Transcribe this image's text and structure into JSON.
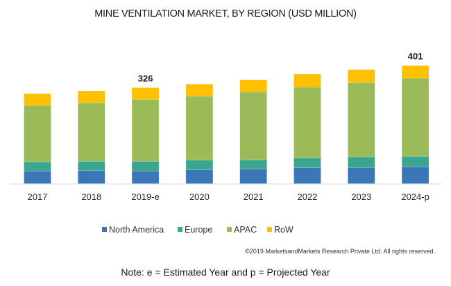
{
  "chart_data": {
    "type": "bar",
    "stacked": true,
    "title": "MINE VENTILATION MARKET, BY REGION (USD MILLION)",
    "xlabel": "",
    "ylabel": "",
    "categories": [
      "2017",
      "2018",
      "2019-e",
      "2020",
      "2021",
      "2022",
      "2023",
      "2024-p"
    ],
    "series": [
      {
        "name": "North America",
        "color": "#3A76B8",
        "values": [
          43,
          45,
          43,
          47,
          49,
          54,
          55,
          57
        ]
      },
      {
        "name": "Europe",
        "color": "#3AA68E",
        "values": [
          31,
          31,
          33,
          33,
          32,
          33,
          36,
          36
        ]
      },
      {
        "name": "APAC",
        "color": "#9BBB59",
        "values": [
          192,
          199,
          210,
          218,
          231,
          241,
          253,
          265
        ]
      },
      {
        "name": "RoW",
        "color": "#FFC000",
        "values": [
          40,
          40,
          40,
          40,
          41,
          44,
          43,
          43
        ]
      }
    ],
    "totals": [
      306,
      315,
      326,
      338,
      353,
      372,
      387,
      401
    ],
    "data_labels": [
      {
        "category": "2019-e",
        "text": "326"
      },
      {
        "category": "2024-p",
        "text": "401"
      }
    ],
    "ylim": [
      0,
      401
    ],
    "grid": false,
    "y_axis_visible": false,
    "legend": {
      "position": "bottom",
      "entries": [
        "North America",
        "Europe",
        "APAC",
        "RoW"
      ]
    }
  },
  "footer": {
    "copyright": "©2019 MarketsandMarkets Research Private Ltd. All rights reserved.",
    "note": "Note: e = Estimated Year and p = Projected Year"
  }
}
